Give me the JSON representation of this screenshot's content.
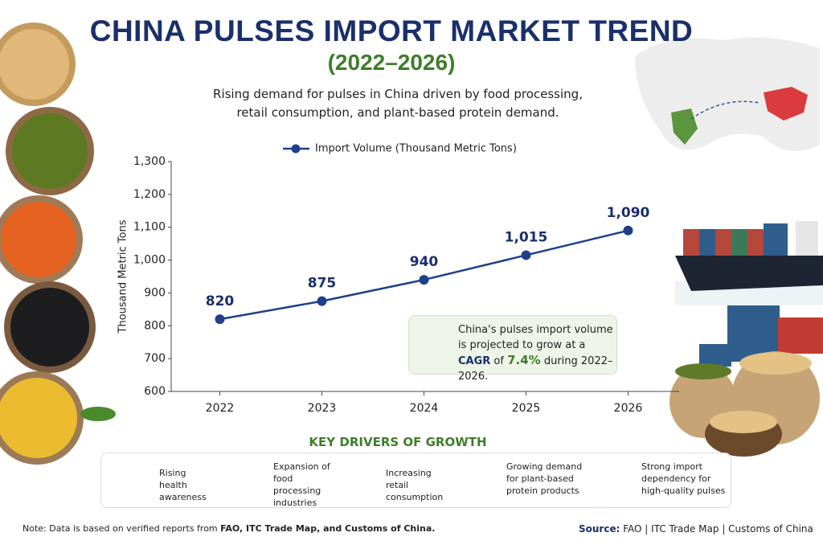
{
  "chart_data": {
    "type": "line",
    "title": "CHINA PULSES IMPORT MARKET TREND",
    "subtitle": "(2022–2026)",
    "description": "Rising demand for pulses in China driven by food processing, retail consumption, and plant-based protein demand.",
    "y_label": "Thousand Metric Tons",
    "categories": [
      "2022",
      "2023",
      "2024",
      "2025",
      "2026"
    ],
    "series": [
      {
        "name": "Import Volume (Thousand Metric Tons)",
        "color": "#1f3f8a",
        "values": [
          820,
          875,
          940,
          1015,
          1090
        ],
        "value_labels": [
          "820",
          "875",
          "940",
          "1,015",
          "1,090"
        ]
      }
    ],
    "ylim": [
      600,
      1300
    ],
    "yticks": [
      600,
      700,
      800,
      900,
      {
        "value": 1000,
        "label": "1,000"
      },
      {
        "value": 1100,
        "label": "1,100"
      },
      {
        "value": 1200,
        "label": "1,200"
      },
      {
        "value": 1300,
        "label": "1,300"
      }
    ],
    "grid": false,
    "legend": "top"
  },
  "callout": {
    "parts": [
      "China's pulses import volume is projected to grow at a ",
      "CAGR",
      " of ",
      "7.4%",
      " during 2022–2026."
    ]
  },
  "drivers": {
    "title": "KEY DRIVERS OF GROWTH",
    "items": [
      "Rising health awareness",
      "Expansion of food processing industries",
      "Increasing retail consumption",
      "Growing demand for plant-based protein products",
      "Strong import dependency for high-quality pulses"
    ]
  },
  "footer": {
    "note": [
      "Note: Data is based on verified reports from ",
      "FAO, ITC Trade Map, and Customs of China."
    ],
    "source_label": "Source:",
    "source": "FAO | ITC Trade Map | Customs of China"
  }
}
